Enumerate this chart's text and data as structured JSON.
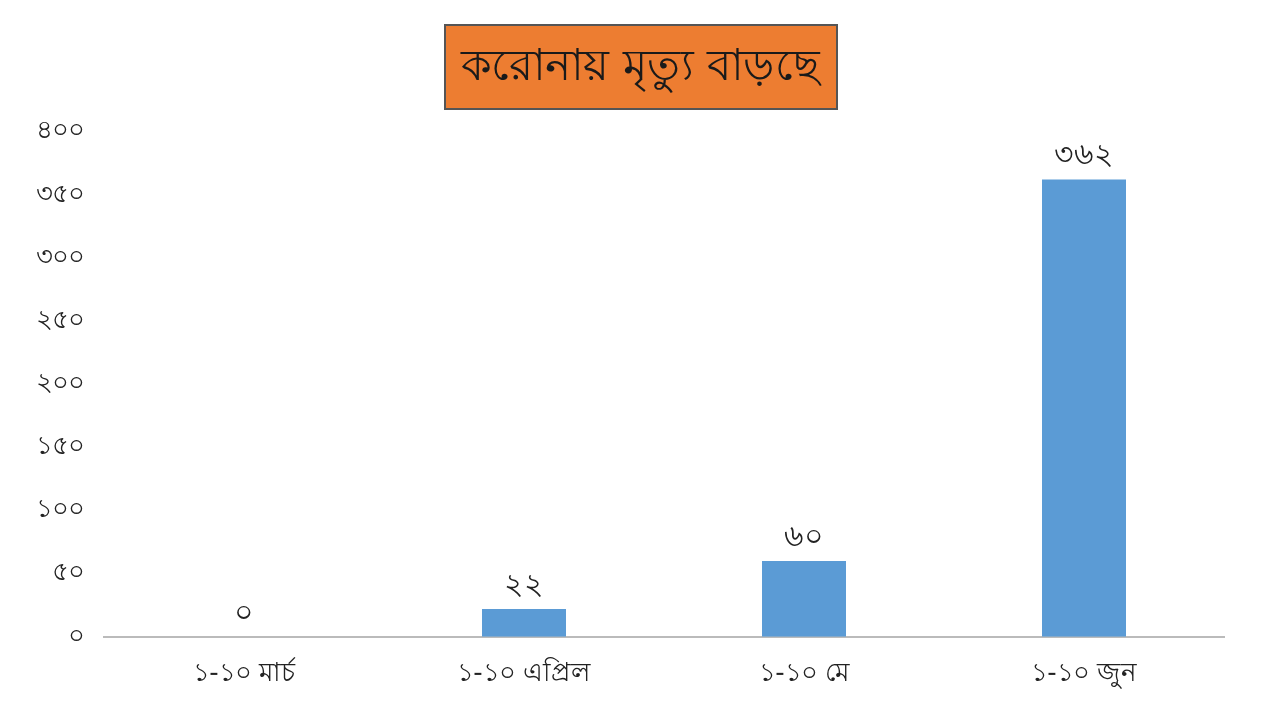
{
  "chart_data": {
    "type": "bar",
    "title": "করোনায় মৃত্যু বাড়ছে",
    "categories": [
      "১-১০ মার্চ",
      "১-১০ এপ্রিল",
      "১-১০ মে",
      "১-১০ জুন"
    ],
    "values": [
      0,
      22,
      60,
      362
    ],
    "color": "#5b9bd5",
    "value_labels": [
      "০",
      "২২",
      "৬০",
      "৩৬২"
    ],
    "ylim": [
      0,
      400
    ],
    "yticks": [
      {
        "value": 0,
        "label": "০"
      },
      {
        "value": 50,
        "label": "৫০"
      },
      {
        "value": 100,
        "label": "১০০"
      },
      {
        "value": 150,
        "label": "১৫০"
      },
      {
        "value": 200,
        "label": "২০০"
      },
      {
        "value": 250,
        "label": "২৫০"
      },
      {
        "value": 300,
        "label": "৩০০"
      },
      {
        "value": 350,
        "label": "৩৫০"
      },
      {
        "value": 400,
        "label": "৪০০"
      }
    ],
    "grid": false,
    "legend": false
  }
}
